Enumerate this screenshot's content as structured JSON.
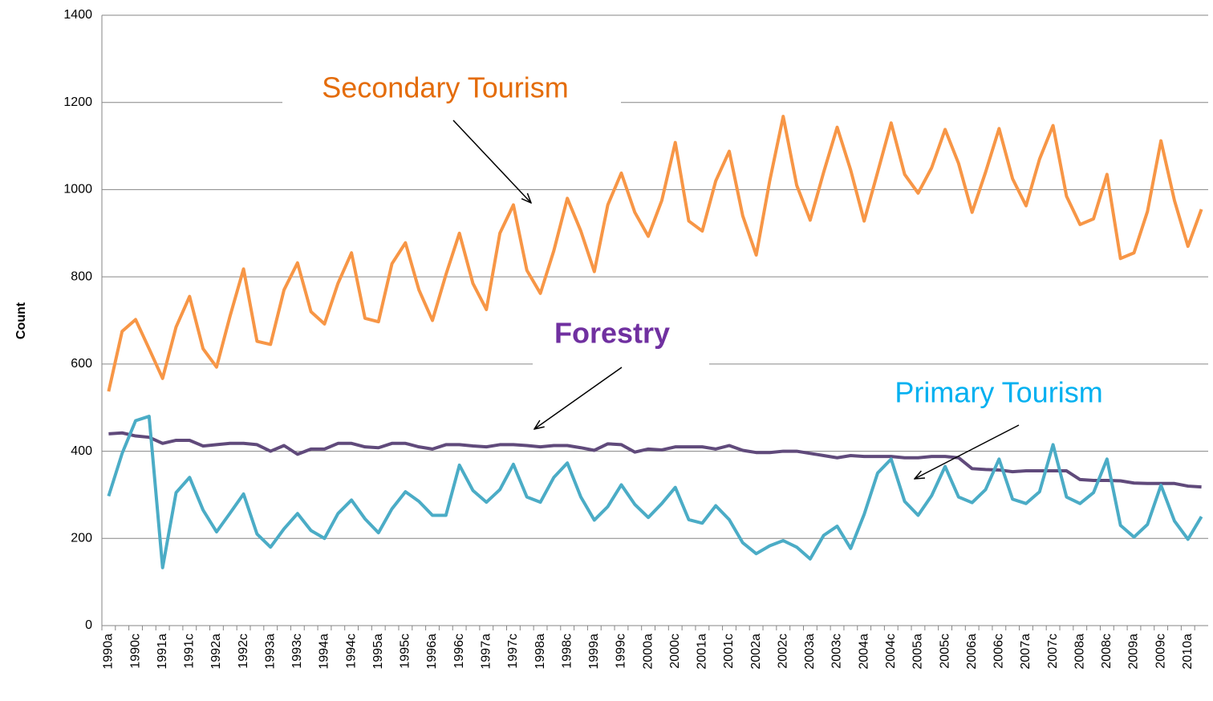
{
  "chart_data": {
    "type": "line",
    "y_label": "Count",
    "ylim": [
      0,
      1400
    ],
    "yticks": [
      0,
      200,
      400,
      600,
      800,
      1000,
      1200,
      1400
    ],
    "grid": true,
    "categories": [
      "1990a",
      null,
      "1990c",
      null,
      "1991a",
      null,
      "1991c",
      null,
      "1992a",
      null,
      "1992c",
      null,
      "1993a",
      null,
      "1993c",
      null,
      "1994a",
      null,
      "1994c",
      null,
      "1995a",
      null,
      "1995c",
      null,
      "1996a",
      null,
      "1996c",
      null,
      "1997a",
      null,
      "1997c",
      null,
      "1998a",
      null,
      "1998c",
      null,
      "1999a",
      null,
      "1999c",
      null,
      "2000a",
      null,
      "2000c",
      null,
      "2001a",
      null,
      "2001c",
      null,
      "2002a",
      null,
      "2002c",
      null,
      "2003a",
      null,
      "2003c",
      null,
      "2004a",
      null,
      "2004c",
      null,
      "2005a",
      null,
      "2005c",
      null,
      "2006a",
      null,
      "2006c",
      null,
      "2007a",
      null,
      "2007c",
      null,
      "2008a",
      null,
      "2008c",
      null,
      "2009a",
      null,
      "2009c",
      null,
      "2010a",
      null
    ],
    "series": [
      {
        "name": "Secondary Tourism",
        "color": "#f79646",
        "values": [
          537,
          675,
          702,
          635,
          567,
          685,
          755,
          635,
          593,
          710,
          818,
          652,
          645,
          770,
          832,
          720,
          692,
          785,
          855,
          705,
          697,
          830,
          878,
          770,
          700,
          805,
          900,
          785,
          725,
          900,
          965,
          815,
          762,
          860,
          980,
          905,
          812,
          965,
          1038,
          948,
          893,
          975,
          1108,
          928,
          905,
          1020,
          1088,
          940,
          850,
          1020,
          1168,
          1010,
          930,
          1040,
          1143,
          1045,
          928,
          1040,
          1153,
          1035,
          992,
          1050,
          1138,
          1060,
          948,
          1040,
          1140,
          1025,
          963,
          1070,
          1147,
          985,
          920,
          933,
          1035,
          842,
          855,
          950,
          1112,
          975,
          870,
          955
        ]
      },
      {
        "name": "Forestry",
        "color": "#604a7b",
        "values": [
          440,
          442,
          435,
          432,
          418,
          425,
          425,
          412,
          415,
          418,
          418,
          415,
          400,
          413,
          393,
          405,
          405,
          418,
          418,
          410,
          408,
          418,
          418,
          410,
          405,
          415,
          415,
          412,
          410,
          415,
          415,
          413,
          410,
          413,
          413,
          408,
          402,
          417,
          415,
          398,
          405,
          403,
          410,
          410,
          410,
          405,
          413,
          402,
          397,
          397,
          400,
          400,
          395,
          390,
          385,
          390,
          388,
          388,
          388,
          385,
          385,
          388,
          388,
          385,
          360,
          358,
          357,
          353,
          355,
          355,
          355,
          355,
          335,
          333,
          333,
          332,
          327,
          326,
          326,
          326,
          320,
          318
        ]
      },
      {
        "name": "Primary Tourism",
        "color": "#4bacc6",
        "values": [
          297,
          395,
          470,
          480,
          133,
          305,
          340,
          265,
          215,
          258,
          302,
          210,
          180,
          222,
          257,
          218,
          200,
          257,
          288,
          245,
          213,
          268,
          307,
          285,
          253,
          253,
          368,
          310,
          283,
          312,
          370,
          295,
          283,
          340,
          373,
          295,
          242,
          273,
          323,
          278,
          248,
          280,
          317,
          243,
          235,
          275,
          243,
          190,
          165,
          183,
          195,
          180,
          153,
          207,
          228,
          177,
          255,
          350,
          382,
          285,
          253,
          298,
          365,
          295,
          282,
          312,
          382,
          290,
          280,
          307,
          415,
          295,
          280,
          305,
          382,
          230,
          203,
          232,
          322,
          240,
          198,
          250
        ]
      }
    ],
    "annotations": [
      {
        "text": "Secondary Tourism",
        "color": "#e46c0a",
        "bold": false
      },
      {
        "text": "Forestry",
        "color": "#7030a0",
        "bold": true
      },
      {
        "text": "Primary Tourism",
        "color": "#00b0f0",
        "bold": false
      }
    ]
  }
}
